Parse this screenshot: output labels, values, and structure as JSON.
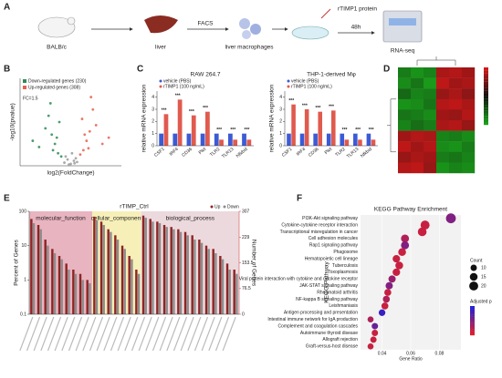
{
  "panel_labels": [
    "A",
    "B",
    "C",
    "D",
    "E",
    "F"
  ],
  "workflow": {
    "mouse": "BALB/c",
    "organ": "liver",
    "method": "FACS",
    "cells": "liver macrophages",
    "treatment": "rTIMP1 protein",
    "time": "48h",
    "readout": "RNA-seq"
  },
  "chart_data": [
    {
      "type": "scatter",
      "xlabel": "log2(FoldChange)",
      "ylabel": "-log10(pvalue)",
      "annotation": "FC=1.5",
      "xlim": [
        -8,
        8
      ],
      "ylim": [
        0,
        140
      ],
      "series": [
        {
          "name": "Down-regulated genes (230)",
          "color": "#2e8b57",
          "x": [
            -2,
            -2.5,
            -3,
            -1.5,
            -4,
            -3.5,
            -2.2,
            -5,
            -1.8,
            -2.8,
            -6,
            -3.2
          ],
          "y": [
            20,
            35,
            50,
            15,
            60,
            80,
            45,
            30,
            70,
            25,
            40,
            100
          ]
        },
        {
          "name": "Up-regulated genes (308)",
          "color": "#e8604c",
          "x": [
            2,
            2.5,
            3,
            1.5,
            4,
            3.5,
            2.2,
            5,
            1.8,
            2.8,
            6,
            3.2
          ],
          "y": [
            25,
            40,
            55,
            18,
            65,
            90,
            50,
            35,
            75,
            28,
            45,
            110
          ]
        },
        {
          "color": "#9a9a9a",
          "x": [
            -1,
            -0.5,
            0,
            0.5,
            1,
            -0.8,
            0.8,
            0.2,
            -0.3,
            0.6
          ],
          "y": [
            5,
            10,
            3,
            8,
            6,
            15,
            12,
            20,
            2,
            4
          ]
        }
      ]
    },
    {
      "type": "bar",
      "title": "RAW 264.7",
      "ylabel": "relative mRNA expression",
      "categories": [
        "CSF1",
        "IRF4",
        "CD36",
        "Plet",
        "TLR2",
        "TLR13",
        "Nfkbid"
      ],
      "series": [
        {
          "name": "vehicle (PBS)",
          "color": "#3b5bd6",
          "values": [
            1,
            1,
            1,
            1,
            1,
            1,
            1
          ]
        },
        {
          "name": "rTIMP1 (100 ng/mL)",
          "color": "#e05a4e",
          "values": [
            2.6,
            3.8,
            2.5,
            2.8,
            0.5,
            0.5,
            0.5
          ]
        }
      ],
      "significance": [
        "***",
        "***",
        "***",
        "***",
        "***",
        "***",
        "***"
      ],
      "ylim": [
        0,
        4.5
      ],
      "yticks": [
        0,
        1,
        2,
        3,
        4
      ]
    },
    {
      "type": "bar",
      "title": "THP-1-derived Mφ",
      "ylabel": "relative mRNA expression",
      "categories": [
        "CSF1",
        "IRF4",
        "CD36",
        "Plet",
        "TLR2",
        "TLR13",
        "Nfkbid"
      ],
      "series": [
        {
          "name": "vehicle (PBS)",
          "color": "#3b5bd6",
          "values": [
            1,
            1,
            1,
            1,
            1,
            1,
            1
          ]
        },
        {
          "name": "rTIMP1 (100 ng/mL)",
          "color": "#e05a4e",
          "values": [
            3.4,
            3.0,
            2.8,
            2.9,
            0.5,
            0.5,
            0.5
          ]
        }
      ],
      "significance": [
        "***",
        "***",
        "***",
        "***",
        "***",
        "***",
        "***"
      ],
      "ylim": [
        0,
        4.5
      ],
      "yticks": [
        0,
        1,
        2,
        3,
        4
      ]
    },
    {
      "type": "heatmap",
      "clim": [
        -2,
        2
      ],
      "colors": [
        "#1aa01a",
        "#111111",
        "#d01818"
      ],
      "values": [
        [
          -1.5,
          -1.8,
          -1.6,
          1.6,
          1.7,
          1.5
        ],
        [
          -1.7,
          -1.4,
          -1.9,
          1.8,
          1.5,
          1.6
        ],
        [
          -1.2,
          -1.6,
          -1.5,
          1.4,
          1.6,
          1.3
        ],
        [
          -1.8,
          -1.7,
          -1.4,
          1.7,
          1.8,
          1.6
        ],
        [
          -1.4,
          -1.5,
          -1.7,
          1.5,
          1.4,
          1.7
        ],
        [
          -1.6,
          -1.3,
          -1.5,
          1.6,
          1.7,
          1.4
        ],
        [
          1.5,
          1.7,
          1.6,
          -1.6,
          -1.5,
          -1.7
        ],
        [
          1.8,
          1.5,
          1.7,
          -1.7,
          -1.8,
          -1.5
        ],
        [
          1.4,
          1.6,
          1.5,
          -1.5,
          -1.4,
          -1.6
        ],
        [
          1.7,
          1.8,
          1.4,
          -1.8,
          -1.6,
          -1.7
        ]
      ]
    },
    {
      "type": "bar",
      "title": "rTIMP_Ctrl",
      "ylabel": "Percent of Genes",
      "y2label": "Number of Genes",
      "log": true,
      "categories": [
        null,
        null,
        null,
        null,
        null,
        null,
        null,
        null,
        null,
        null,
        null,
        null,
        null,
        null,
        null,
        null,
        null,
        null,
        null,
        null,
        null,
        null,
        null,
        null,
        null,
        null,
        null,
        null,
        null,
        null
      ],
      "sections": [
        {
          "name": "molecular_function",
          "size": 9,
          "color": "#e8b4c0"
        },
        {
          "name": "cellular_component",
          "size": 7,
          "color": "#f6efb8"
        },
        {
          "name": "biological_process",
          "size": 14,
          "color": "#ecd9dd"
        }
      ],
      "series": [
        {
          "name": "Up",
          "color": "#8e2424",
          "values": [
            60,
            40,
            15,
            8,
            5,
            3,
            2,
            1.5,
            1,
            70,
            50,
            30,
            20,
            10,
            5,
            2,
            75,
            60,
            50,
            40,
            35,
            30,
            25,
            20,
            15,
            10,
            8,
            5,
            3,
            2
          ]
        },
        {
          "name": "Down",
          "color": "#8c8c8c",
          "values": [
            45,
            30,
            10,
            6,
            4,
            2,
            1.5,
            1,
            0.8,
            55,
            40,
            25,
            15,
            8,
            4,
            1.5,
            65,
            50,
            45,
            35,
            30,
            25,
            20,
            15,
            12,
            8,
            6,
            4,
            2,
            1.5
          ]
        }
      ],
      "ylim": [
        0.1,
        100
      ],
      "yticks": [
        0.1,
        1,
        10,
        100
      ],
      "y2lim": [
        0,
        307
      ],
      "y2ticks": [
        0,
        76.5,
        153.5,
        229,
        307
      ]
    },
    {
      "type": "dot",
      "title": "KEGG Pathway Enrichment",
      "xlabel": "Gene Ratio",
      "ylabel": "KEGG Pathway",
      "categories": [
        "PI3K-Akt signaling pathway",
        "Cytokine-cytokine receptor interaction",
        "Transcriptional misregulation in cancer",
        "Cell adhesion molecules",
        "Rap1 signaling pathway",
        "Phagosome",
        "Hematopoietic cell lineage",
        "Tuberculosis",
        "Toxoplasmosis",
        "Viral protein interaction with cytokine and cytokine receptor",
        "JAK-STAT signaling pathway",
        "Rheumatoid arthritis",
        "NF-kappa B signaling pathway",
        "Leishmaniasis",
        "Antigen processing and presentation",
        "Intestinal immune network for IgA production",
        "Complement and coagulation cascades",
        "Autoimmune thyroid disease",
        "Allograft rejection",
        "Graft-versus-host disease"
      ],
      "x": [
        0.088,
        0.07,
        0.068,
        0.056,
        0.056,
        0.054,
        0.05,
        0.052,
        0.05,
        0.047,
        0.045,
        0.044,
        0.043,
        0.042,
        0.04,
        0.032,
        0.035,
        0.035,
        0.034,
        0.032
      ],
      "counts": [
        24,
        20,
        19,
        16,
        16,
        15,
        14,
        15,
        14,
        13,
        13,
        12,
        12,
        12,
        11,
        9,
        10,
        10,
        10,
        9
      ],
      "padj": [
        0.05,
        0.02,
        0.02,
        0.03,
        0.05,
        0.02,
        0.02,
        0.02,
        0.02,
        0.04,
        0.05,
        0.02,
        0.03,
        0.02,
        0.08,
        0.03,
        0.06,
        0.02,
        0.02,
        0.02
      ],
      "xlim": [
        0.025,
        0.095
      ],
      "xticks": [
        0.04,
        0.06,
        0.08
      ],
      "size_label": "Count",
      "size_ticks": [
        10,
        15,
        20
      ],
      "color_label": "Adjusted p",
      "clim": [
        0.01,
        0.09
      ],
      "colors": [
        "#e0202a",
        "#2020d8"
      ]
    }
  ]
}
